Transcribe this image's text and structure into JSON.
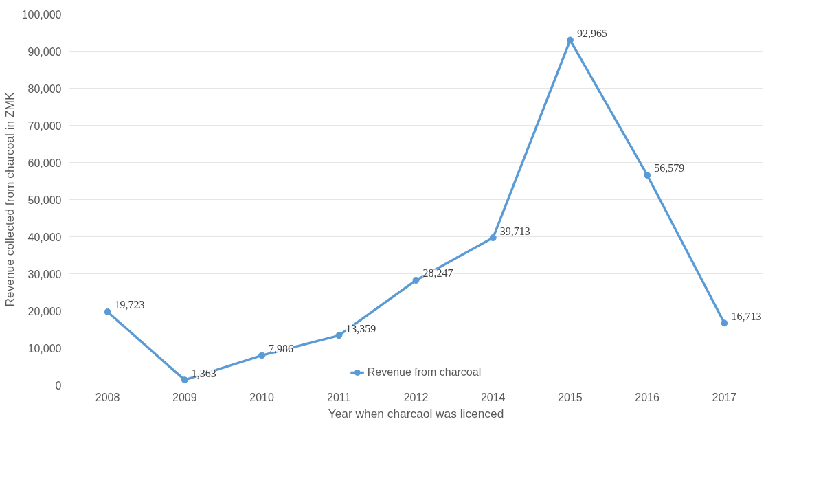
{
  "chart_data": {
    "type": "line",
    "xlabel": "Year when charcaol was licenced",
    "ylabel": "Revenue collected from charcoal in ZMK",
    "categories": [
      "2008",
      "2009",
      "2010",
      "2011",
      "2012",
      "2014",
      "2015",
      "2016",
      "2017"
    ],
    "series": [
      {
        "name": "Revenue from charcoal",
        "color": "#5b9bd5",
        "values": [
          19723,
          1363,
          7986,
          13359,
          28247,
          39713,
          92965,
          56579,
          16713
        ],
        "value_labels": [
          "19,723",
          "1,363",
          "7,986",
          "13,359",
          "28,247",
          "39,713",
          "92,965",
          "56,579",
          "16,713"
        ]
      }
    ],
    "ylim": [
      0,
      100000
    ],
    "yticks": [
      {
        "value": 0,
        "label": "0"
      },
      {
        "value": 10000,
        "label": "10,000"
      },
      {
        "value": 20000,
        "label": "20,000"
      },
      {
        "value": 30000,
        "label": "30,000"
      },
      {
        "value": 40000,
        "label": "40,000"
      },
      {
        "value": 50000,
        "label": "50,000"
      },
      {
        "value": 60000,
        "label": "60,000"
      },
      {
        "value": 70000,
        "label": "70,000"
      },
      {
        "value": 80000,
        "label": "80,000"
      },
      {
        "value": 90000,
        "label": "90,000"
      },
      {
        "value": 100000,
        "label": "100,000"
      }
    ],
    "grid": "y",
    "legend": "bottom",
    "marker": "circle",
    "line_style": "solid"
  }
}
